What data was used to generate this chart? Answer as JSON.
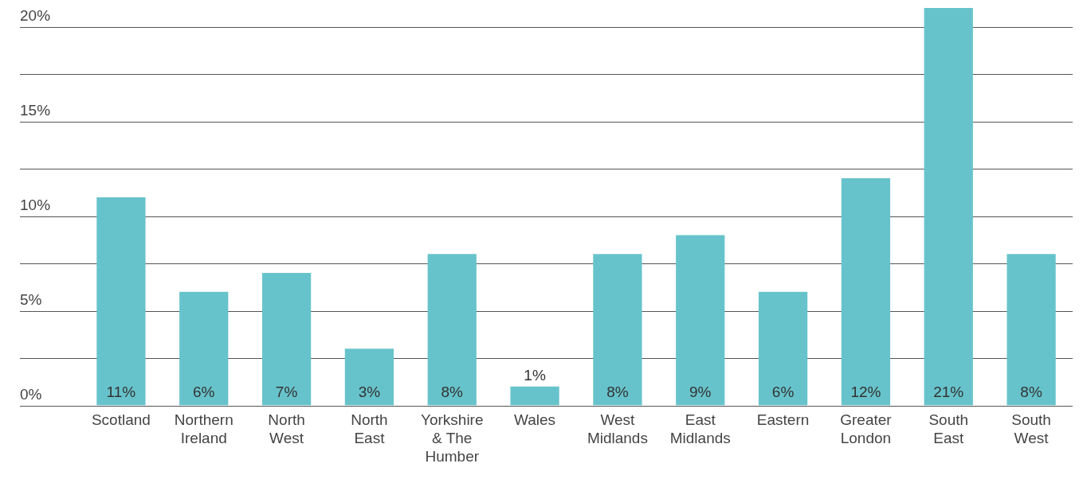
{
  "chart_data": {
    "type": "bar",
    "categories": [
      "Scotland",
      "Northern Ireland",
      "North West",
      "North East",
      "Yorkshire & The Humber",
      "Wales",
      "West Midlands",
      "East Midlands",
      "Eastern",
      "Greater London",
      "South East",
      "South West"
    ],
    "values": [
      11,
      6,
      7,
      3,
      8,
      1,
      8,
      9,
      6,
      12,
      21,
      8
    ],
    "value_labels": [
      "11%",
      "6%",
      "7%",
      "3%",
      "8%",
      "1%",
      "8%",
      "9%",
      "6%",
      "12%",
      "21%",
      "8%"
    ],
    "color": "#67c3cb",
    "ylim": [
      0,
      21
    ],
    "yticks": [
      {
        "value": 0,
        "label": "0%"
      },
      {
        "value": 2.5,
        "label": null
      },
      {
        "value": 5,
        "label": "5%"
      },
      {
        "value": 7.5,
        "label": null
      },
      {
        "value": 10,
        "label": "10%"
      },
      {
        "value": 12.5,
        "label": null
      },
      {
        "value": 15,
        "label": "15%"
      },
      {
        "value": 17.5,
        "label": null
      },
      {
        "value": 20,
        "label": "20%"
      }
    ],
    "grid": "y",
    "legend": false
  }
}
